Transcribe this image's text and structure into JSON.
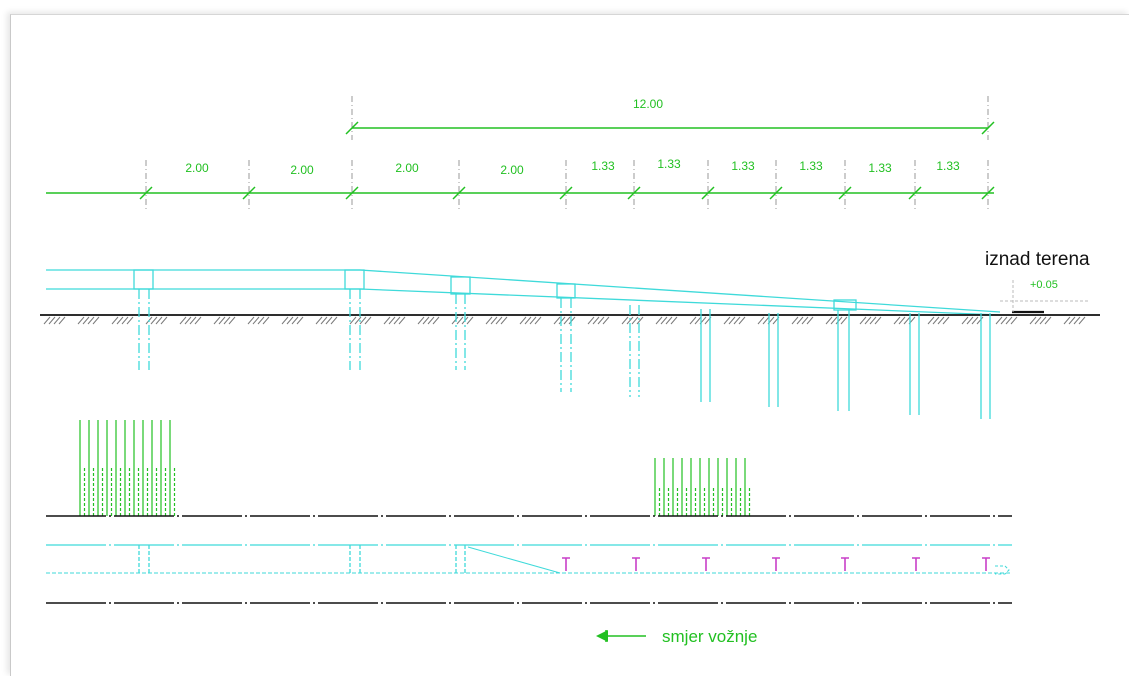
{
  "drawing": {
    "overall_dimension": "12.00",
    "segment_dimensions": [
      "2.00",
      "2.00",
      "2.00",
      "2.00",
      "1.33",
      "1.33",
      "1.33",
      "1.33",
      "1.33",
      "1.33"
    ],
    "label_above_ground": "iznad terena",
    "elevation_mark": "+0.05",
    "direction_label": "smjer vožnje"
  },
  "colors": {
    "dimension": "#22c022",
    "structure": "#3fdada",
    "ground": "#111111",
    "post_marker": "#c83fc8"
  }
}
